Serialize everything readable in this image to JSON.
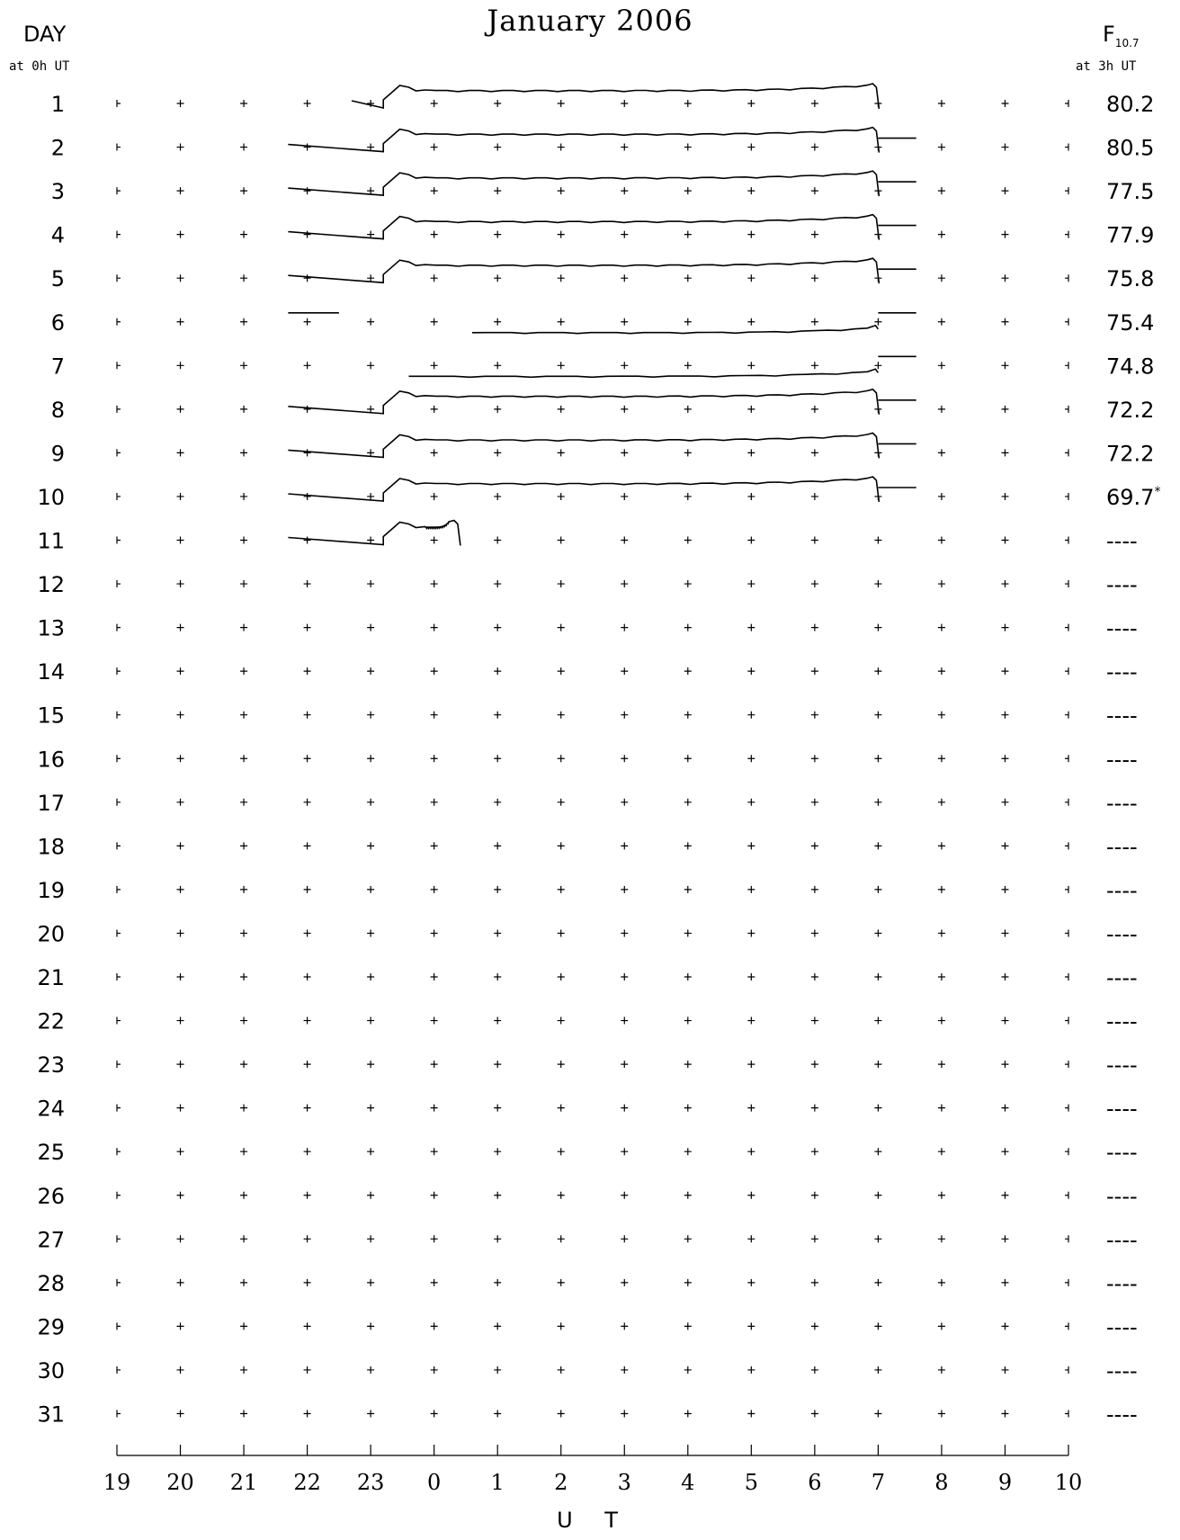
{
  "title": "January 2006",
  "left_header": {
    "label": "DAY",
    "sub": "at 0h UT"
  },
  "right_header": {
    "label": "F",
    "label_sub": "10.7",
    "sub": "at 3h UT"
  },
  "chart_data": {
    "type": "line",
    "title": "January 2006",
    "xlabel": "U T",
    "x_ticks": [
      "19",
      "20",
      "21",
      "22",
      "23",
      "0",
      "1",
      "2",
      "3",
      "4",
      "5",
      "6",
      "7",
      "8",
      "9",
      "10"
    ],
    "xlim_hours_ut": [
      19,
      34
    ],
    "days": [
      "1",
      "2",
      "3",
      "4",
      "5",
      "6",
      "7",
      "8",
      "9",
      "10",
      "11",
      "12",
      "13",
      "14",
      "15",
      "16",
      "17",
      "18",
      "19",
      "20",
      "21",
      "22",
      "23",
      "24",
      "25",
      "26",
      "27",
      "28",
      "29",
      "30",
      "31"
    ],
    "f107": [
      "80.2",
      "80.5",
      "77.5",
      "77.9",
      "75.8",
      "75.4",
      "74.8",
      "72.2",
      "72.2",
      "69.7*",
      "----",
      "----",
      "----",
      "----",
      "----",
      "----",
      "----",
      "----",
      "----",
      "----",
      "----",
      "----",
      "----",
      "----",
      "----",
      "----",
      "----",
      "----",
      "----",
      "----",
      "----"
    ],
    "grid": "plus markers at each hour",
    "series": [
      {
        "day": 1,
        "segments": [
          [
            22.7,
            23.6,
            31.0
          ]
        ]
      },
      {
        "day": 2,
        "segments": [
          [
            21.7,
            23.6,
            31.0
          ],
          [
            31.0,
            31.6
          ]
        ]
      },
      {
        "day": 3,
        "segments": [
          [
            21.7,
            23.6,
            31.0
          ],
          [
            31.0,
            31.6
          ]
        ]
      },
      {
        "day": 4,
        "segments": [
          [
            21.7,
            23.6,
            31.0
          ],
          [
            31.0,
            31.6
          ]
        ]
      },
      {
        "day": 5,
        "segments": [
          [
            21.7,
            23.6,
            31.0
          ],
          [
            31.0,
            31.6
          ]
        ]
      },
      {
        "day": 6,
        "segments": [
          [
            21.7,
            22.5
          ],
          [
            24.6,
            31.0
          ],
          [
            31.0,
            31.6
          ]
        ]
      },
      {
        "day": 7,
        "segments": [
          [
            23.6,
            31.0
          ],
          [
            31.0,
            31.6
          ]
        ]
      },
      {
        "day": 8,
        "segments": [
          [
            21.7,
            23.6,
            31.0
          ],
          [
            31.0,
            31.6
          ]
        ]
      },
      {
        "day": 9,
        "segments": [
          [
            21.7,
            23.6,
            31.0
          ],
          [
            31.0,
            31.6
          ]
        ]
      },
      {
        "day": 10,
        "segments": [
          [
            21.7,
            23.6,
            31.0
          ],
          [
            31.0,
            31.6
          ]
        ]
      },
      {
        "day": 11,
        "segments": [
          [
            21.7,
            23.6,
            24.4
          ]
        ]
      }
    ]
  }
}
